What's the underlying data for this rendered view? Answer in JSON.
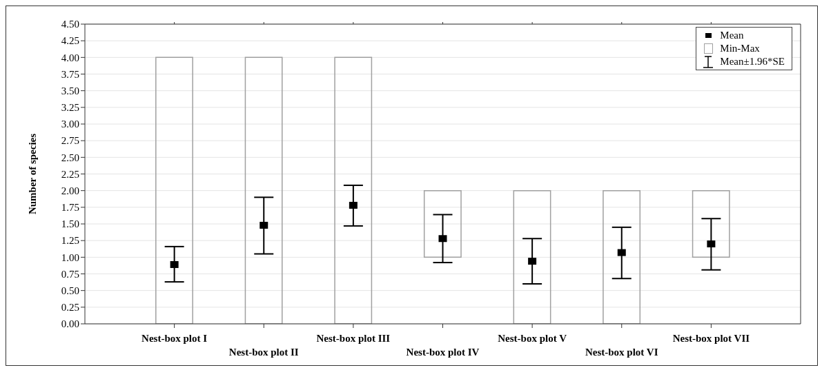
{
  "chart_data": {
    "type": "bar",
    "ylabel": "Number of species",
    "categories": [
      "Nest-box plot I",
      "Nest-box plot II",
      "Nest-box plot III",
      "Nest-box plot IV",
      "Nest-box plot V",
      "Nest-box plot VI",
      "Nest-box plot VII"
    ],
    "series": [
      {
        "name": "Mean",
        "type": "scatter",
        "color": "#000000",
        "marker": "square",
        "values": [
          0.89,
          1.48,
          1.78,
          1.28,
          0.94,
          1.07,
          1.2
        ],
        "errors": [
          [
            0.63,
            1.16
          ],
          [
            1.05,
            1.9
          ],
          [
            1.47,
            2.08
          ],
          [
            0.92,
            1.64
          ],
          [
            0.6,
            1.28
          ],
          [
            0.68,
            1.45
          ],
          [
            0.81,
            1.58
          ]
        ]
      },
      {
        "name": "Min-Max",
        "color": "#a0a0a0",
        "base": [
          0,
          0,
          0,
          1,
          0,
          0,
          1
        ],
        "values": [
          4,
          4,
          4,
          1,
          2,
          2,
          1
        ]
      }
    ],
    "annotations": [
      "Mean±1.96*SE"
    ],
    "ylim": [
      0,
      4.5
    ],
    "yticks": [
      {
        "value": 0,
        "label": "0.00"
      },
      {
        "value": 0.25,
        "label": "0.25"
      },
      {
        "value": 0.5,
        "label": "0.50"
      },
      {
        "value": 0.75,
        "label": "0.75"
      },
      {
        "value": 1,
        "label": "1.00"
      },
      {
        "value": 1.25,
        "label": "1.25"
      },
      {
        "value": 1.5,
        "label": "1.50"
      },
      {
        "value": 1.75,
        "label": "1.75"
      },
      {
        "value": 2,
        "label": "2.00"
      },
      {
        "value": 2.25,
        "label": "2.25"
      },
      {
        "value": 2.5,
        "label": "2.50"
      },
      {
        "value": 2.75,
        "label": "2.75"
      },
      {
        "value": 3,
        "label": "3.00"
      },
      {
        "value": 3.25,
        "label": "3.25"
      },
      {
        "value": 3.5,
        "label": "3.50"
      },
      {
        "value": 3.75,
        "label": "3.75"
      },
      {
        "value": 4,
        "label": "4.00"
      },
      {
        "value": 4.25,
        "label": "4.25"
      },
      {
        "value": 4.5,
        "label": "4.50"
      }
    ],
    "grid": "y",
    "legend": "top right"
  }
}
